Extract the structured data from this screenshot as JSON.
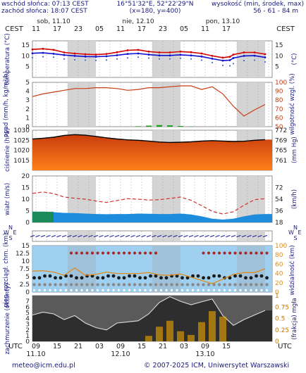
{
  "header": {
    "sunrise": "wschód słońca: 07:13 CEST",
    "sunset": "zachód słońca: 18:07 CEST",
    "coords": "16°51'32\"E, 52°22'29\"N",
    "grid_point": "(x=180, y=400)",
    "elevation_label": "wysokość (min, środek, max)",
    "elevation_values": "56 - 61 - 84 m"
  },
  "top_axis": {
    "zone": "CEST",
    "days": [
      "sob, 11.10",
      "nie, 12.10",
      "pon, 13.10"
    ],
    "hours": [
      "11",
      "17",
      "23",
      "05",
      "11",
      "17",
      "23",
      "05",
      "11",
      "17"
    ]
  },
  "bottom_axis": {
    "zone": "UTC",
    "hours": [
      "09",
      "15",
      "21",
      "03",
      "09",
      "15",
      "21",
      "03",
      "09",
      "15"
    ],
    "dates": [
      "11.10",
      "12.10",
      "13.10"
    ]
  },
  "footer": {
    "email": "meteo@icm.edu.pl",
    "copyright": "© 2007-2025 ICM, Uniwersytet Warszawski"
  },
  "colors": {
    "tmax": "#d40000",
    "tmean": "#1010d0",
    "tmin": "#4a6bd8",
    "humidity": "#c83c14",
    "precip": "#1aa01a",
    "pressure_high": "#c83c0c",
    "pressure_low": "#ff7f1a",
    "wind_line": "#d43030",
    "wind_fill": "#1e8cdc",
    "visibility": "#e08c1c",
    "night_band": "#d4d4d4"
  },
  "chart_data": [
    {
      "type": "line",
      "title": "",
      "ylabel": "temperatura (°C)",
      "ylabel_right": "(°C)",
      "ylim": [
        0,
        17
      ],
      "yticks": [
        5,
        10,
        15
      ],
      "x_hours_from_start": [
        0,
        3,
        6,
        9,
        12,
        15,
        18,
        21,
        24,
        27,
        30,
        33,
        36,
        39,
        42,
        45,
        48,
        51,
        54,
        56,
        57,
        60,
        63,
        66
      ],
      "series": [
        {
          "name": "tmax",
          "values": [
            13.0,
            13.3,
            12.8,
            11.6,
            11.1,
            10.8,
            10.6,
            10.9,
            11.7,
            12.6,
            12.8,
            12.0,
            11.6,
            11.6,
            12.0,
            11.7,
            11.1,
            10.0,
            9.2,
            9.6,
            10.6,
            11.6,
            11.6,
            10.8
          ]
        },
        {
          "name": "tmean",
          "values": [
            11.2,
            11.4,
            11.0,
            10.4,
            10.0,
            9.7,
            9.6,
            9.8,
            10.3,
            10.9,
            11.1,
            10.6,
            10.2,
            10.2,
            10.5,
            10.2,
            9.7,
            8.7,
            7.8,
            8.0,
            9.0,
            10.0,
            10.1,
            9.3
          ]
        },
        {
          "name": "tmin",
          "values": [
            9.2,
            9.6,
            9.4,
            8.6,
            8.2,
            8.0,
            7.9,
            8.1,
            8.6,
            9.1,
            9.4,
            9.0,
            8.6,
            8.6,
            8.9,
            8.6,
            8.0,
            6.9,
            5.6,
            5.4,
            6.4,
            7.8,
            8.0,
            7.2
          ]
        }
      ]
    },
    {
      "type": "bar",
      "title": "",
      "ylabel": "opad (mm/h, kg/m²/h)",
      "ylabel_right": "wilgotność wzgl. (%)",
      "ylim": [
        0,
        5
      ],
      "yticks": [
        0,
        1,
        2,
        3,
        4,
        5
      ],
      "y2lim": [
        50,
        100
      ],
      "y2ticks": [
        50,
        60,
        70,
        80,
        90,
        100
      ],
      "x_hours_from_start": [
        0,
        3,
        6,
        9,
        12,
        15,
        18,
        21,
        24,
        27,
        30,
        33,
        36,
        39,
        42,
        45,
        48,
        51,
        54,
        57,
        60,
        63,
        66
      ],
      "series": [
        {
          "name": "humidity",
          "values": [
            84,
            87,
            89,
            91,
            93,
            93,
            94,
            94,
            93,
            91,
            92,
            94,
            94,
            95,
            96,
            96,
            92,
            95,
            87,
            73,
            62,
            69,
            75
          ]
        },
        {
          "name": "precipitation",
          "values": [
            0,
            0,
            0,
            0,
            0,
            0,
            0,
            0,
            0,
            0,
            0.05,
            0.12,
            0.18,
            0.15,
            0.08,
            0.03,
            0,
            0,
            0,
            0,
            0,
            0,
            0
          ]
        }
      ]
    },
    {
      "type": "area",
      "title": "",
      "ylabel": "ciśnienie (hPa)",
      "ylabel_right": "(mm Hg)",
      "ylim": [
        1010,
        1030
      ],
      "yticks": [
        1015,
        1020,
        1025,
        1030
      ],
      "y2ticks": [
        761,
        765,
        769,
        772
      ],
      "x_hours_from_start": [
        0,
        3,
        6,
        9,
        12,
        15,
        18,
        21,
        24,
        27,
        30,
        33,
        36,
        39,
        42,
        45,
        48,
        51,
        54,
        57,
        60,
        63,
        66
      ],
      "series": [
        {
          "name": "pressure",
          "values": [
            1025.6,
            1026.0,
            1026.5,
            1027.4,
            1027.8,
            1027.5,
            1026.9,
            1026.2,
            1025.6,
            1025.2,
            1025.0,
            1024.6,
            1024.1,
            1023.9,
            1024.0,
            1024.2,
            1024.6,
            1024.8,
            1024.6,
            1024.4,
            1024.5,
            1025.0,
            1025.3
          ]
        }
      ]
    },
    {
      "type": "area",
      "title": "",
      "ylabel": "wiatr (m/s)",
      "ylabel_right": "(km/h)",
      "ylim": [
        0,
        20
      ],
      "yticks": [
        0,
        5,
        10,
        15,
        20
      ],
      "y2ticks": [
        18,
        36,
        54,
        72
      ],
      "x_hours_from_start": [
        0,
        3,
        6,
        9,
        12,
        15,
        18,
        21,
        24,
        27,
        30,
        33,
        36,
        39,
        42,
        45,
        48,
        51,
        54,
        57,
        60,
        63,
        66
      ],
      "series": [
        {
          "name": "gusts",
          "values": [
            12.5,
            13.1,
            12.4,
            10.9,
            10.4,
            10.0,
            9.2,
            8.6,
            9.4,
            10.2,
            10.0,
            9.6,
            9.8,
            10.3,
            10.9,
            9.5,
            7.2,
            4.8,
            3.6,
            4.6,
            7.4,
            9.8,
            10.2
          ]
        },
        {
          "name": "wind_speed",
          "values": [
            4.6,
            4.6,
            4.4,
            4.1,
            4.0,
            3.8,
            3.6,
            3.5,
            3.6,
            3.6,
            3.8,
            3.7,
            3.6,
            3.6,
            3.8,
            3.4,
            2.6,
            1.6,
            1.2,
            1.6,
            2.6,
            3.4,
            3.6
          ]
        }
      ]
    },
    {
      "type": "scatter",
      "title": "",
      "ylabel": "pion. rozciągł. chm. (km)",
      "ylabel_right": "widzialność (km)",
      "ylim": [
        0,
        15
      ],
      "yticks": [
        0,
        2.5,
        5,
        7.5,
        10,
        12.5,
        15
      ],
      "y2ticks": [
        0,
        20,
        40,
        60,
        80,
        100
      ],
      "x_hours_from_start": [
        0,
        3,
        6,
        9,
        12,
        15,
        18,
        21,
        24,
        27,
        30,
        33,
        36,
        39,
        42,
        45,
        48,
        51,
        54,
        57,
        60,
        63,
        66
      ],
      "series": [
        {
          "name": "visibility",
          "values": [
            45,
            46,
            43,
            36,
            52,
            36,
            38,
            43,
            40,
            40,
            40,
            42,
            37,
            36,
            39,
            32,
            25,
            18,
            28,
            38,
            42,
            42,
            50
          ]
        }
      ]
    },
    {
      "type": "area",
      "title": "",
      "ylabel": "zachmurzenie (oktanty)",
      "ylabel_right": "(frakcja) mgła",
      "ylim": [
        0,
        8
      ],
      "yticks": [
        0,
        1,
        2,
        3,
        4,
        5,
        6,
        7
      ],
      "y2ticks": [
        0,
        0.25,
        0.5,
        0.75,
        1
      ],
      "x_hours_from_start": [
        0,
        3,
        6,
        9,
        12,
        15,
        18,
        21,
        24,
        27,
        30,
        33,
        36,
        39,
        42,
        45,
        48,
        51,
        54,
        57,
        60,
        63,
        66
      ],
      "series": [
        {
          "name": "total_cloud",
          "values": [
            4.6,
            5.1,
            4.8,
            3.8,
            4.5,
            3.2,
            2.4,
            2.0,
            3.2,
            3.4,
            3.6,
            4.8,
            6.8,
            7.8,
            7.0,
            6.4,
            6.9,
            7.4,
            4.5,
            2.8,
            3.8,
            4.6,
            5.4
          ]
        },
        {
          "name": "fog_fraction",
          "values": [
            0,
            0,
            0,
            0,
            0,
            0,
            0,
            0,
            0,
            0,
            0,
            0.12,
            0.32,
            0.45,
            0.22,
            0.14,
            0.42,
            0.66,
            0.54,
            0,
            0,
            0,
            0
          ]
        }
      ]
    }
  ]
}
